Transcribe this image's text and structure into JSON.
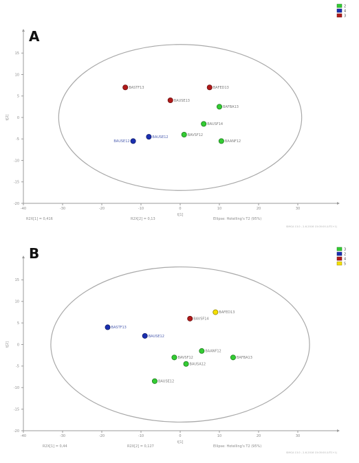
{
  "chart_data": [
    {
      "type": "scatter",
      "panel_label": "A",
      "xlabel": "t[1]",
      "ylabel": "t[2]",
      "xlim": [
        -40,
        40
      ],
      "ylim": [
        -20,
        20
      ],
      "xticks": [
        -40,
        -30,
        -20,
        -10,
        0,
        10,
        20,
        30
      ],
      "yticks": [
        -20,
        -15,
        -10,
        -5,
        0,
        5,
        10,
        15
      ],
      "grid": false,
      "legend_position": "top-right",
      "legend": [
        {
          "name": "2",
          "color": "#33cc33"
        },
        {
          "name": "4",
          "color": "#1a2fb0"
        },
        {
          "name": "3",
          "color": "#b01a1a"
        }
      ],
      "points": [
        {
          "label": "BASTF13",
          "x": -14,
          "y": 7,
          "group": "3"
        },
        {
          "label": "BAFED13",
          "x": 7.5,
          "y": 7,
          "group": "3"
        },
        {
          "label": "BAUSE13",
          "x": -2.5,
          "y": 4,
          "group": "3"
        },
        {
          "label": "BAFBA13",
          "x": 10,
          "y": 2.5,
          "group": "2"
        },
        {
          "label": "BAUSF14",
          "x": 6,
          "y": -1.5,
          "group": "2"
        },
        {
          "label": "BAUSE12",
          "x": -8,
          "y": -4.5,
          "group": "4"
        },
        {
          "label": "BAVSF12",
          "x": 1,
          "y": -4,
          "group": "2"
        },
        {
          "label": "BAUSE12",
          "x": -12,
          "y": -5.5,
          "group": "4"
        },
        {
          "label": "BAANF12",
          "x": 10.5,
          "y": -5.5,
          "group": "2"
        }
      ],
      "ellipse": {
        "rx": 31,
        "ry": 17
      },
      "footer": {
        "r2x1": "R2X[1] = 0,416",
        "r2x2": "R2X[2] = 0,13",
        "ellipse_text": "Ellipse: Hotelling's T2 (95%)"
      },
      "stamp": "SIMCA 13.0 - 2-6-2016 15:05:00 (UTC+1)"
    },
    {
      "type": "scatter",
      "panel_label": "B",
      "xlabel": "t[1]",
      "ylabel": "t[2]",
      "xlim": [
        -40,
        40
      ],
      "ylim": [
        -20,
        20
      ],
      "xticks": [
        -40,
        -30,
        -20,
        -10,
        0,
        10,
        20,
        30
      ],
      "yticks": [
        -20,
        -15,
        -10,
        -5,
        0,
        5,
        10,
        15
      ],
      "grid": false,
      "legend_position": "top-right",
      "legend": [
        {
          "name": "3",
          "color": "#33cc33"
        },
        {
          "name": "2",
          "color": "#1a2fb0"
        },
        {
          "name": "4",
          "color": "#b01a1a"
        },
        {
          "name": "5",
          "color": "#f5e000"
        }
      ],
      "points": [
        {
          "label": "BAFED13",
          "x": 9,
          "y": 7.5,
          "group": "5"
        },
        {
          "label": "BAVSF14",
          "x": 2.5,
          "y": 6,
          "group": "4"
        },
        {
          "label": "BASTF13",
          "x": -18.5,
          "y": 4,
          "group": "2"
        },
        {
          "label": "BAUSE12",
          "x": -9,
          "y": 2,
          "group": "2"
        },
        {
          "label": "BAANF12",
          "x": 5.5,
          "y": -1.5,
          "group": "3"
        },
        {
          "label": "BAFBA13",
          "x": 13.5,
          "y": -3,
          "group": "3"
        },
        {
          "label": "BAVSF12",
          "x": -1.5,
          "y": -3,
          "group": "3"
        },
        {
          "label": "BAUSA12",
          "x": 1.5,
          "y": -4.5,
          "group": "3"
        },
        {
          "label": "BAUSE12",
          "x": -6.5,
          "y": -8.5,
          "group": "3"
        }
      ],
      "ellipse": {
        "rx": 33,
        "ry": 18
      },
      "footer": {
        "r2x1": "R2X[1] = 0,44",
        "r2x2": "R2X[2] = 0,127",
        "ellipse_text": "Ellipse: Hotelling's T2 (95%)"
      },
      "stamp": "SIMCA 13.0 - 2-6-2016 15:05:00 (UTC+1)"
    }
  ]
}
